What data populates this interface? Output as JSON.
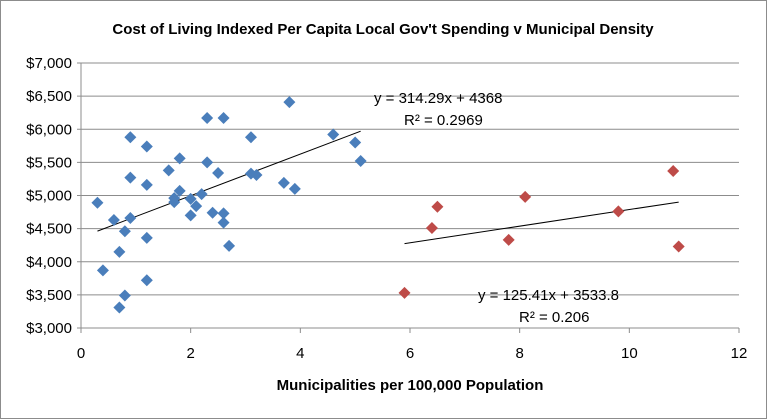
{
  "chart_data": {
    "type": "scatter",
    "title": "Cost of Living Indexed Per Capita Local Gov't Spending v Municipal Density",
    "xlabel": "Municipalities per 100,000 Population",
    "ylabel": "",
    "xlim": [
      0,
      12
    ],
    "ylim": [
      3000,
      7000
    ],
    "x_ticks": [
      "0",
      "2",
      "4",
      "6",
      "8",
      "10",
      "12"
    ],
    "y_ticks": [
      "$3,000",
      "$3,500",
      "$4,000",
      "$4,500",
      "$5,000",
      "$5,500",
      "$6,000",
      "$6,500",
      "$7,000"
    ],
    "grid": "horizontal",
    "legend": "none",
    "series": [
      {
        "color": "#4a7ebb",
        "marker": "diamond",
        "points": [
          [
            0.3,
            4890
          ],
          [
            0.4,
            3870
          ],
          [
            0.6,
            4630
          ],
          [
            0.7,
            4150
          ],
          [
            0.7,
            3310
          ],
          [
            0.8,
            4460
          ],
          [
            0.8,
            3490
          ],
          [
            0.9,
            4660
          ],
          [
            0.9,
            5270
          ],
          [
            0.9,
            5880
          ],
          [
            1.2,
            5740
          ],
          [
            1.2,
            5160
          ],
          [
            1.2,
            4360
          ],
          [
            1.2,
            3720
          ],
          [
            1.6,
            5380
          ],
          [
            1.7,
            4960
          ],
          [
            1.7,
            4900
          ],
          [
            1.8,
            5560
          ],
          [
            1.8,
            5070
          ],
          [
            2.0,
            4700
          ],
          [
            2.0,
            4950
          ],
          [
            2.1,
            4840
          ],
          [
            2.2,
            5020
          ],
          [
            2.3,
            5500
          ],
          [
            2.3,
            6170
          ],
          [
            2.4,
            4740
          ],
          [
            2.5,
            5340
          ],
          [
            2.6,
            4730
          ],
          [
            2.6,
            4590
          ],
          [
            2.6,
            6170
          ],
          [
            2.7,
            4240
          ],
          [
            3.1,
            5880
          ],
          [
            3.1,
            5330
          ],
          [
            3.2,
            5310
          ],
          [
            3.7,
            5190
          ],
          [
            3.8,
            6410
          ],
          [
            3.9,
            5100
          ],
          [
            4.6,
            5920
          ],
          [
            5.0,
            5800
          ],
          [
            5.1,
            5520
          ]
        ],
        "trendline": {
          "slope": 314.29,
          "intercept": 4368,
          "x_range": [
            0.3,
            5.1
          ],
          "equation": "y = 314.29x + 4368",
          "r2_label": "R² = 0.2969"
        }
      },
      {
        "color": "#be4b48",
        "marker": "diamond",
        "points": [
          [
            5.9,
            3530
          ],
          [
            6.4,
            4510
          ],
          [
            6.5,
            4830
          ],
          [
            7.8,
            4330
          ],
          [
            8.1,
            4980
          ],
          [
            9.8,
            4760
          ],
          [
            10.8,
            5370
          ],
          [
            10.9,
            4230
          ]
        ],
        "trendline": {
          "slope": 125.41,
          "intercept": 3533.8,
          "x_range": [
            5.9,
            10.9
          ],
          "equation": "y = 125.41x + 3533.8",
          "r2_label": "R² = 0.206"
        }
      }
    ]
  }
}
